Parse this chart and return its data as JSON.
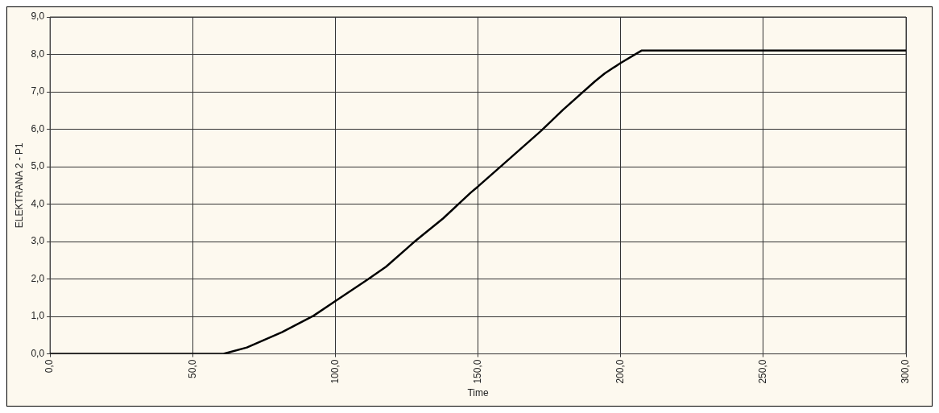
{
  "chart_data": {
    "type": "line",
    "xlabel": "Time",
    "ylabel": "ELEKTRANA 2 - P1",
    "x": [
      0,
      50,
      60.8,
      69,
      81.3,
      92.4,
      100,
      111.2,
      117.8,
      127.8,
      137.8,
      147.5,
      150,
      158.5,
      172,
      179.8,
      191,
      194.4,
      200,
      207.3,
      250,
      300
    ],
    "series": [
      {
        "color": "#000000",
        "values": [
          0,
          0,
          0,
          0.17,
          0.58,
          1.02,
          1.41,
          1.98,
          2.33,
          3.0,
          3.62,
          4.31,
          4.47,
          5.04,
          5.95,
          6.52,
          7.28,
          7.49,
          7.77,
          8.1,
          8.1,
          8.1
        ]
      }
    ],
    "xlim": [
      0,
      300
    ],
    "xticks": [
      {
        "value": 0,
        "label": "0,0"
      },
      {
        "value": 50,
        "label": "50,0"
      },
      {
        "value": 100,
        "label": "100,0"
      },
      {
        "value": 150,
        "label": "150,0"
      },
      {
        "value": 200,
        "label": "200,0"
      },
      {
        "value": 250,
        "label": "250,0"
      },
      {
        "value": 300,
        "label": "300,0"
      }
    ],
    "ylim": [
      0,
      9
    ],
    "yticks": [
      {
        "value": 0,
        "label": "0,0"
      },
      {
        "value": 1,
        "label": "1,0"
      },
      {
        "value": 2,
        "label": "2,0"
      },
      {
        "value": 3,
        "label": "3,0"
      },
      {
        "value": 4,
        "label": "4,0"
      },
      {
        "value": 5,
        "label": "5,0"
      },
      {
        "value": 6,
        "label": "6,0"
      },
      {
        "value": 7,
        "label": "7,0"
      },
      {
        "value": 8,
        "label": "8,0"
      },
      {
        "value": 9,
        "label": "9,0"
      }
    ],
    "grid": true,
    "legend": false,
    "marker": "none",
    "line_style": "solid"
  }
}
